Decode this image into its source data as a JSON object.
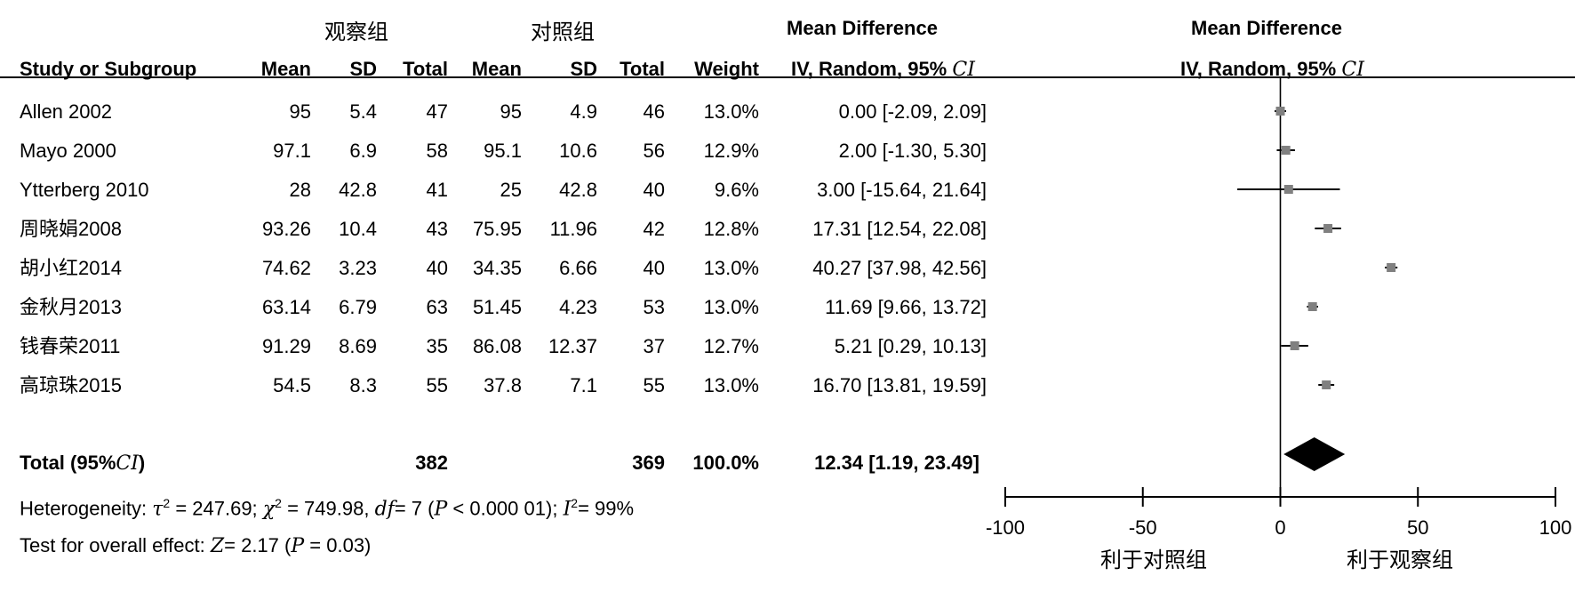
{
  "groups": {
    "experimental": "观察组",
    "control": "对照组"
  },
  "headers": {
    "study": "Study or Subgroup",
    "mean": "Mean",
    "sd": "SD",
    "total": "Total",
    "weight": "Weight",
    "md_title": "Mean Difference",
    "md_method": "IV, Random, 95%",
    "ci": "CI"
  },
  "studies": [
    {
      "name": "Allen 2002",
      "m1": "95",
      "sd1": "5.4",
      "n1": "47",
      "m2": "95",
      "sd2": "4.9",
      "n2": "46",
      "weight": "13.0%",
      "md": "0.00 [-2.09, 2.09]"
    },
    {
      "name": "Mayo 2000",
      "m1": "97.1",
      "sd1": "6.9",
      "n1": "58",
      "m2": "95.1",
      "sd2": "10.6",
      "n2": "56",
      "weight": "12.9%",
      "md": "2.00 [-1.30, 5.30]"
    },
    {
      "name": "Ytterberg 2010",
      "m1": "28",
      "sd1": "42.8",
      "n1": "41",
      "m2": "25",
      "sd2": "42.8",
      "n2": "40",
      "weight": "9.6%",
      "md": "3.00 [-15.64, 21.64]"
    },
    {
      "name": "周晓娟2008",
      "m1": "93.26",
      "sd1": "10.4",
      "n1": "43",
      "m2": "75.95",
      "sd2": "11.96",
      "n2": "42",
      "weight": "12.8%",
      "md": "17.31 [12.54, 22.08]"
    },
    {
      "name": "胡小红2014",
      "m1": "74.62",
      "sd1": "3.23",
      "n1": "40",
      "m2": "34.35",
      "sd2": "6.66",
      "n2": "40",
      "weight": "13.0%",
      "md": "40.27 [37.98, 42.56]"
    },
    {
      "name": "金秋月2013",
      "m1": "63.14",
      "sd1": "6.79",
      "n1": "63",
      "m2": "51.45",
      "sd2": "4.23",
      "n2": "53",
      "weight": "13.0%",
      "md": "11.69 [9.66, 13.72]"
    },
    {
      "name": "钱春荣2011",
      "m1": "91.29",
      "sd1": "8.69",
      "n1": "35",
      "m2": "86.08",
      "sd2": "12.37",
      "n2": "37",
      "weight": "12.7%",
      "md": "5.21 [0.29, 10.13]"
    },
    {
      "name": "高琼珠2015",
      "m1": "54.5",
      "sd1": "8.3",
      "n1": "55",
      "m2": "37.8",
      "sd2": "7.1",
      "n2": "55",
      "weight": "13.0%",
      "md": "16.70 [13.81, 19.59]"
    }
  ],
  "total": {
    "label_pre": "Total (95%",
    "label_ci": "CI",
    "label_post": ")",
    "n1": "382",
    "n2": "369",
    "weight": "100.0%",
    "md": "12.34 [1.19, 23.49]"
  },
  "heterogeneity": {
    "label": "Heterogeneity:",
    "tau": "τ",
    "tau_val": "= 247.69;",
    "chi": "χ",
    "chi_val": "= 749.98,",
    "df": "df",
    "df_val": "= 7 (",
    "p": "P",
    "p_val": "< 0.000  01);",
    "i": "I",
    "i_val": "= 99%",
    "sq": "2"
  },
  "overall": {
    "label": "Test for overall effect:",
    "z": "Z",
    "z_val": "= 2.17 (",
    "p": "P",
    "p_val": "= 0.03)"
  },
  "axis_labels": {
    "left": "利于对照组",
    "right": "利于观察组"
  },
  "chart_data": {
    "type": "forest",
    "xlim": [
      -100,
      100
    ],
    "xticks": [
      -100,
      -50,
      0,
      50,
      100
    ],
    "tick_labels": [
      "-100",
      "-50",
      "0",
      "50",
      "100"
    ],
    "points": [
      {
        "md": 0.0,
        "lo": -2.09,
        "hi": 2.09
      },
      {
        "md": 2.0,
        "lo": -1.3,
        "hi": 5.3
      },
      {
        "md": 3.0,
        "lo": -15.64,
        "hi": 21.64
      },
      {
        "md": 17.31,
        "lo": 12.54,
        "hi": 22.08
      },
      {
        "md": 40.27,
        "lo": 37.98,
        "hi": 42.56
      },
      {
        "md": 11.69,
        "lo": 9.66,
        "hi": 13.72
      },
      {
        "md": 5.21,
        "lo": 0.29,
        "hi": 10.13
      },
      {
        "md": 16.7,
        "lo": 13.81,
        "hi": 19.59
      }
    ],
    "pooled": {
      "md": 12.34,
      "lo": 1.19,
      "hi": 23.49
    },
    "marker_color": "#808080",
    "diamond_color": "#000000"
  }
}
